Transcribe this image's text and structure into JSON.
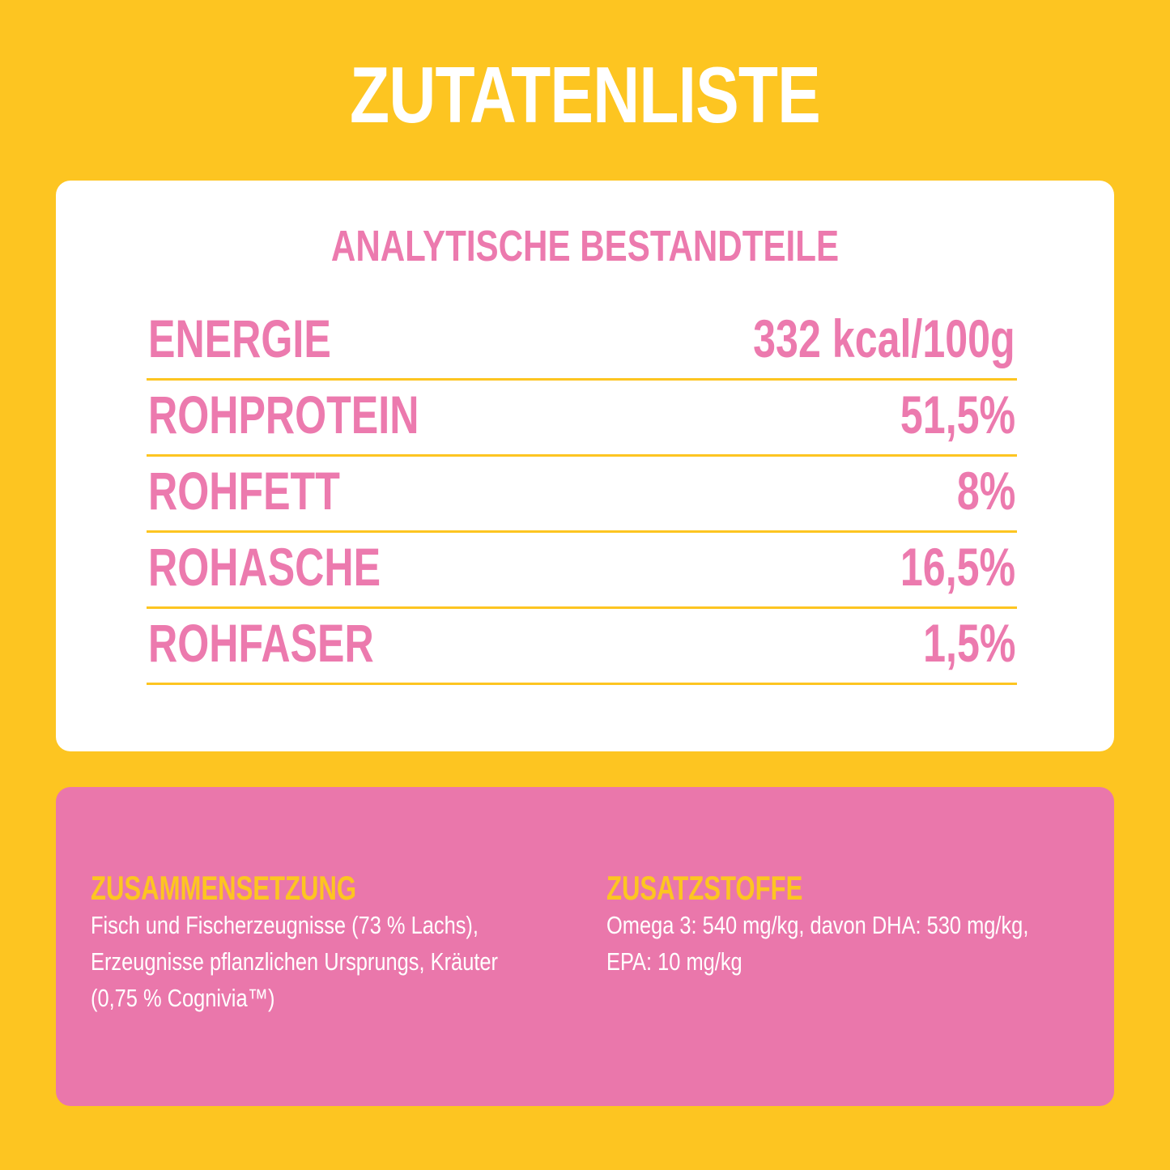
{
  "title": "ZUTATENLISTE",
  "colors": {
    "background": "#FDC521",
    "card": "#FFFFFF",
    "accent_pink": "#EC7AAE",
    "pink_panel": "#EA77AB",
    "heading_yellow": "#FDC521"
  },
  "analytics": {
    "heading": "ANALYTISCHE BESTANDTEILE",
    "rows": [
      {
        "name": "ENERGIE",
        "value": "332 kcal/100g"
      },
      {
        "name": "ROHPROTEIN",
        "value": "51,5%"
      },
      {
        "name": "ROHFETT",
        "value": "8%"
      },
      {
        "name": "ROHASCHE",
        "value": "16,5%"
      },
      {
        "name": "ROHFASER",
        "value": "1,5%"
      }
    ]
  },
  "composition": {
    "heading": "ZUSAMMENSETZUNG",
    "lines": [
      "Fisch und Fischerzeugnisse (73 % Lachs),",
      "Erzeugnisse pflanzlichen Ursprungs, Kräuter",
      "(0,75 % Cognivia™)"
    ]
  },
  "additives": {
    "heading": "ZUSATZSTOFFE",
    "lines": [
      "Omega 3: 540 mg/kg, davon DHA: 530 mg/kg,",
      "EPA: 10 mg/kg"
    ]
  }
}
